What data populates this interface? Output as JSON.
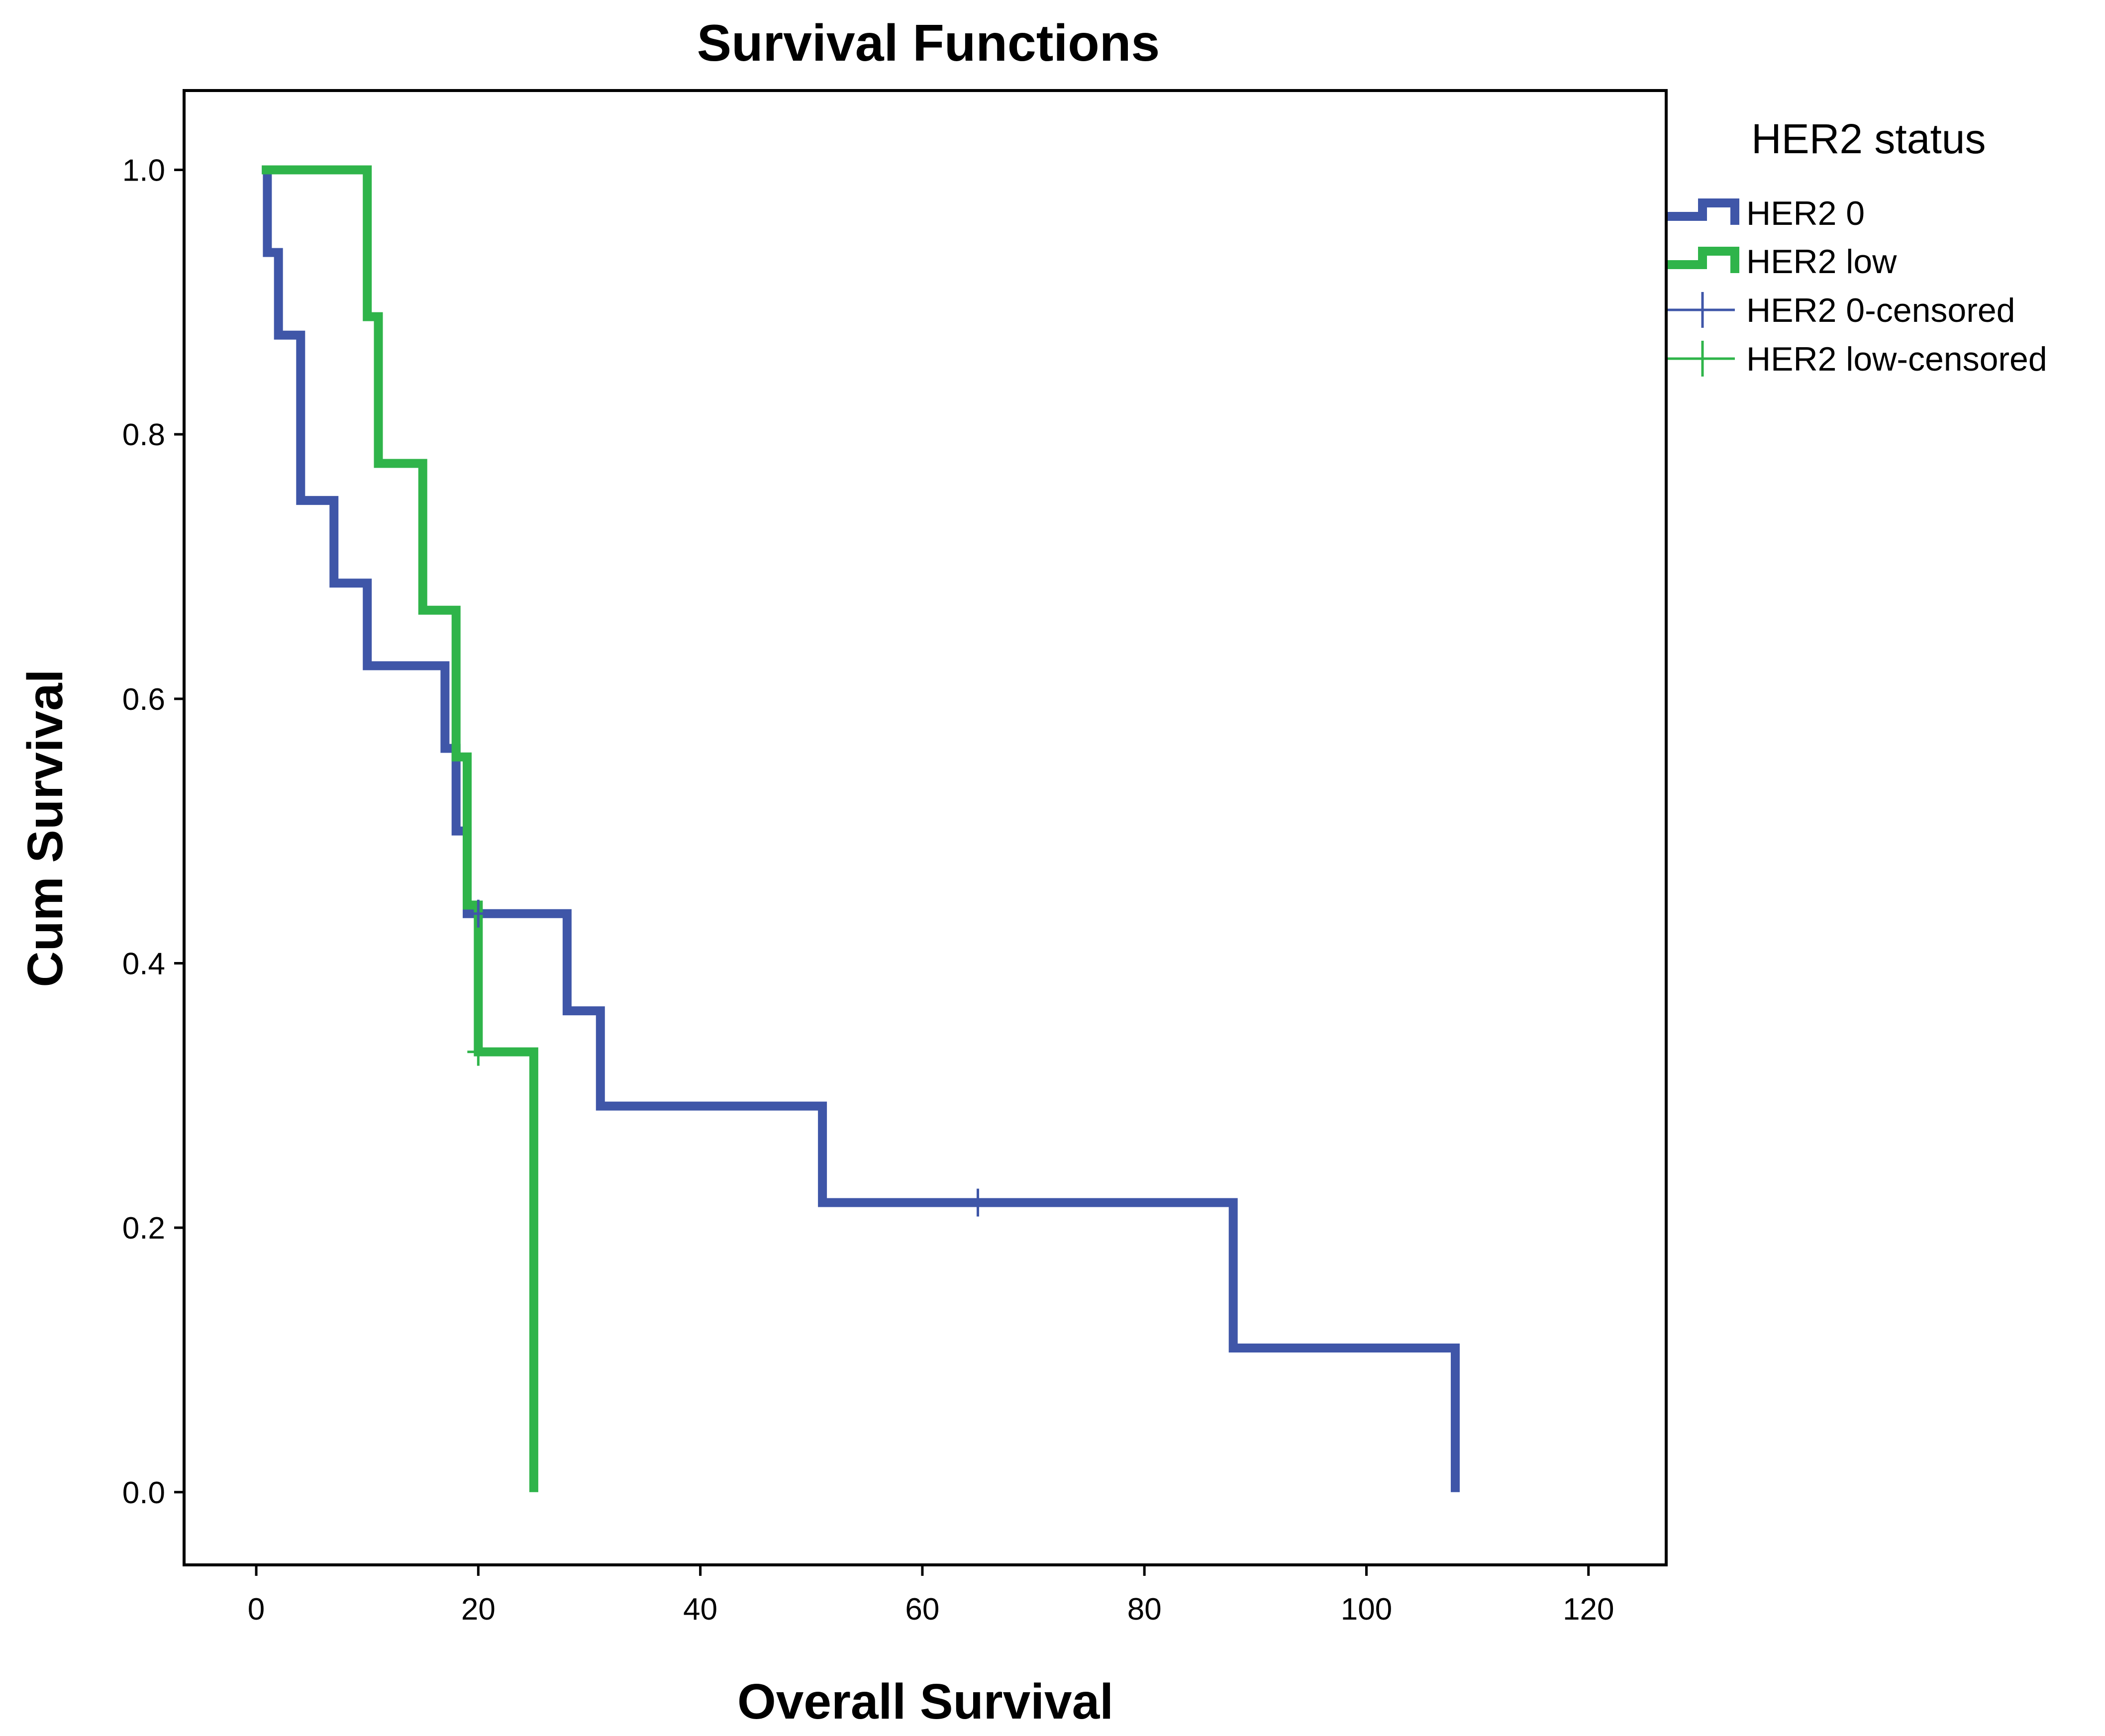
{
  "chart_data": {
    "type": "line",
    "title": "Survival Functions",
    "xlabel": "Overall Survival",
    "ylabel": "Cum Survival",
    "xlim": [
      -6.5,
      127
    ],
    "ylim": [
      -0.055,
      1.06
    ],
    "xticks": [
      0,
      20,
      40,
      60,
      80,
      100,
      120
    ],
    "xtick_labels": [
      "0",
      "20",
      "40",
      "60",
      "80",
      "100",
      "120"
    ],
    "yticks": [
      0.0,
      0.2,
      0.4,
      0.6,
      0.8,
      1.0
    ],
    "ytick_labels": [
      "0.0",
      "0.2",
      "0.4",
      "0.6",
      "0.8",
      "1.0"
    ],
    "grid": false,
    "legend": {
      "title": "HER2 status",
      "placement": "right-top",
      "entries": [
        "HER2 0",
        "HER2 low",
        "HER2 0-censored",
        "HER2 low-censored"
      ]
    },
    "series": [
      {
        "name": "HER2 0",
        "color": "#3f56a8",
        "step": true,
        "points": [
          [
            0.5,
            1.0
          ],
          [
            1,
            0.9375
          ],
          [
            2,
            0.875
          ],
          [
            4,
            0.75
          ],
          [
            7,
            0.6875
          ],
          [
            10,
            0.625
          ],
          [
            17,
            0.5625
          ],
          [
            18,
            0.5
          ],
          [
            19,
            0.4375
          ],
          [
            28,
            0.364
          ],
          [
            31,
            0.292
          ],
          [
            51,
            0.219
          ],
          [
            88,
            0.109
          ],
          [
            108,
            0.0
          ]
        ],
        "censored": [
          [
            20,
            0.4375
          ],
          [
            65,
            0.219
          ]
        ]
      },
      {
        "name": "HER2 low",
        "color": "#2fb44a",
        "step": true,
        "points": [
          [
            0.5,
            1.0
          ],
          [
            10,
            0.889
          ],
          [
            11,
            0.778
          ],
          [
            15,
            0.667
          ],
          [
            18,
            0.556
          ],
          [
            19,
            0.444
          ],
          [
            20,
            0.333
          ],
          [
            25,
            0.0
          ]
        ],
        "censored": [
          [
            20,
            0.333
          ]
        ]
      }
    ]
  }
}
